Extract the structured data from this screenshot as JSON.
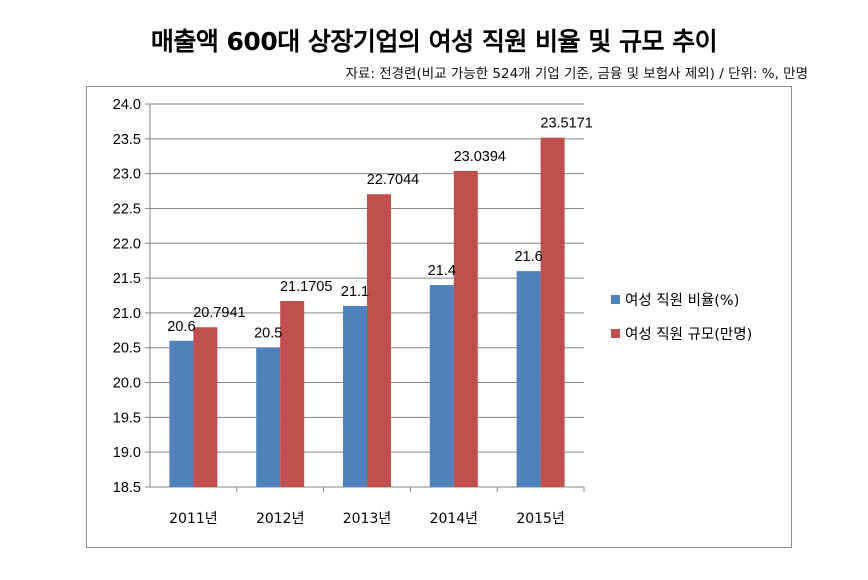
{
  "title": "매출액 600대 상장기업의 여성 직원 비율 및 규모 추이",
  "subtitle": "자료: 전경련(비교 가능한 524개 기업 기준, 금융 및 보험사 제외) / 단위: %, 만명",
  "colors": {
    "series1": "#4f81bd",
    "series2": "#c0504d",
    "grid": "#868686",
    "frame": "#8c8c8c"
  },
  "chart_data": {
    "type": "bar",
    "title": "매출액 600대 상장기업의 여성 직원 비율 및 규모 추이",
    "categories": [
      "2011년",
      "2012년",
      "2013년",
      "2014년",
      "2015년"
    ],
    "series": [
      {
        "name": "여성 직원 비율(%)",
        "values": [
          20.6,
          20.5,
          21.1,
          21.4,
          21.6
        ],
        "labels": [
          "20.6",
          "20.5",
          "21.1",
          "21.4",
          "21.6"
        ]
      },
      {
        "name": "여성 직원 규모(만명)",
        "values": [
          20.7941,
          21.1705,
          22.7044,
          23.0394,
          23.5171
        ],
        "labels": [
          "20.7941",
          "21.1705",
          "22.7044",
          "23.0394",
          "23.5171"
        ]
      }
    ],
    "ylim": [
      18.5,
      24.0
    ],
    "yticks": [
      18.5,
      19.0,
      19.5,
      20.0,
      20.5,
      21.0,
      21.5,
      22.0,
      22.5,
      23.0,
      23.5,
      24.0
    ],
    "ytick_labels": [
      "18.5",
      "19.0",
      "19.5",
      "20.0",
      "20.5",
      "21.0",
      "21.5",
      "22.0",
      "22.5",
      "23.0",
      "23.5",
      "24.0"
    ],
    "grid": true,
    "legend_position": "right"
  }
}
